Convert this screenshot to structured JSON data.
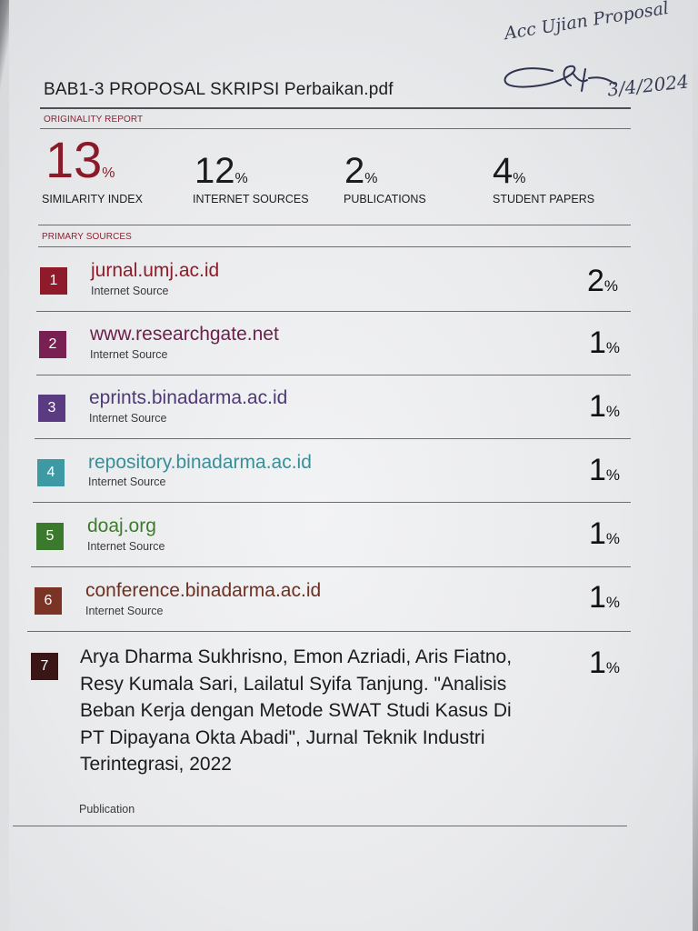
{
  "handwriting": {
    "note": "Acc Ujian Proposal",
    "date": "3/4/2024"
  },
  "document": {
    "title": "BAB1-3 PROPOSAL SKRIPSI Perbaikan.pdf",
    "originality_label": "ORIGINALITY REPORT",
    "primary_sources_label": "PRIMARY SOURCES"
  },
  "stats": [
    {
      "value": "13",
      "unit": "%",
      "label": "SIMILARITY INDEX"
    },
    {
      "value": "12",
      "unit": "%",
      "label": "INTERNET SOURCES"
    },
    {
      "value": "2",
      "unit": "%",
      "label": "PUBLICATIONS"
    },
    {
      "value": "4",
      "unit": "%",
      "label": "STUDENT PAPERS"
    }
  ],
  "sources": [
    {
      "rank": "1",
      "title": "jurnal.umj.ac.id",
      "type": "Internet Source",
      "percent": "2",
      "unit": "%",
      "color": "#8f1b2a",
      "title_color": "#8f1b2a"
    },
    {
      "rank": "2",
      "title": "www.researchgate.net",
      "type": "Internet Source",
      "percent": "1",
      "unit": "%",
      "color": "#7a1f52",
      "title_color": "#6d1f4c"
    },
    {
      "rank": "3",
      "title": "eprints.binadarma.ac.id",
      "type": "Internet Source",
      "percent": "1",
      "unit": "%",
      "color": "#5a3b82",
      "title_color": "#4f3878"
    },
    {
      "rank": "4",
      "title": "repository.binadarma.ac.id",
      "type": "Internet Source",
      "percent": "1",
      "unit": "%",
      "color": "#3d9aa5",
      "title_color": "#3a8e98"
    },
    {
      "rank": "5",
      "title": "doaj.org",
      "type": "Internet Source",
      "percent": "1",
      "unit": "%",
      "color": "#3b7a2c",
      "title_color": "#3f7a2e"
    },
    {
      "rank": "6",
      "title": "conference.binadarma.ac.id",
      "type": "Internet Source",
      "percent": "1",
      "unit": "%",
      "color": "#7a3324",
      "title_color": "#6e3020"
    },
    {
      "rank": "7",
      "title": "Arya Dharma Sukhrisno, Emon Azriadi, Aris Fiatno, Resy Kumala Sari, Lailatul Syifa Tanjung. \"Analisis Beban Kerja dengan Metode SWAT Studi Kasus Di PT Dipayana Okta Abadi\", Jurnal Teknik Industri Terintegrasi, 2022",
      "type": "Publication",
      "percent": "1",
      "unit": "%",
      "color": "#3a1515",
      "title_color": "#1b1b1b"
    }
  ]
}
